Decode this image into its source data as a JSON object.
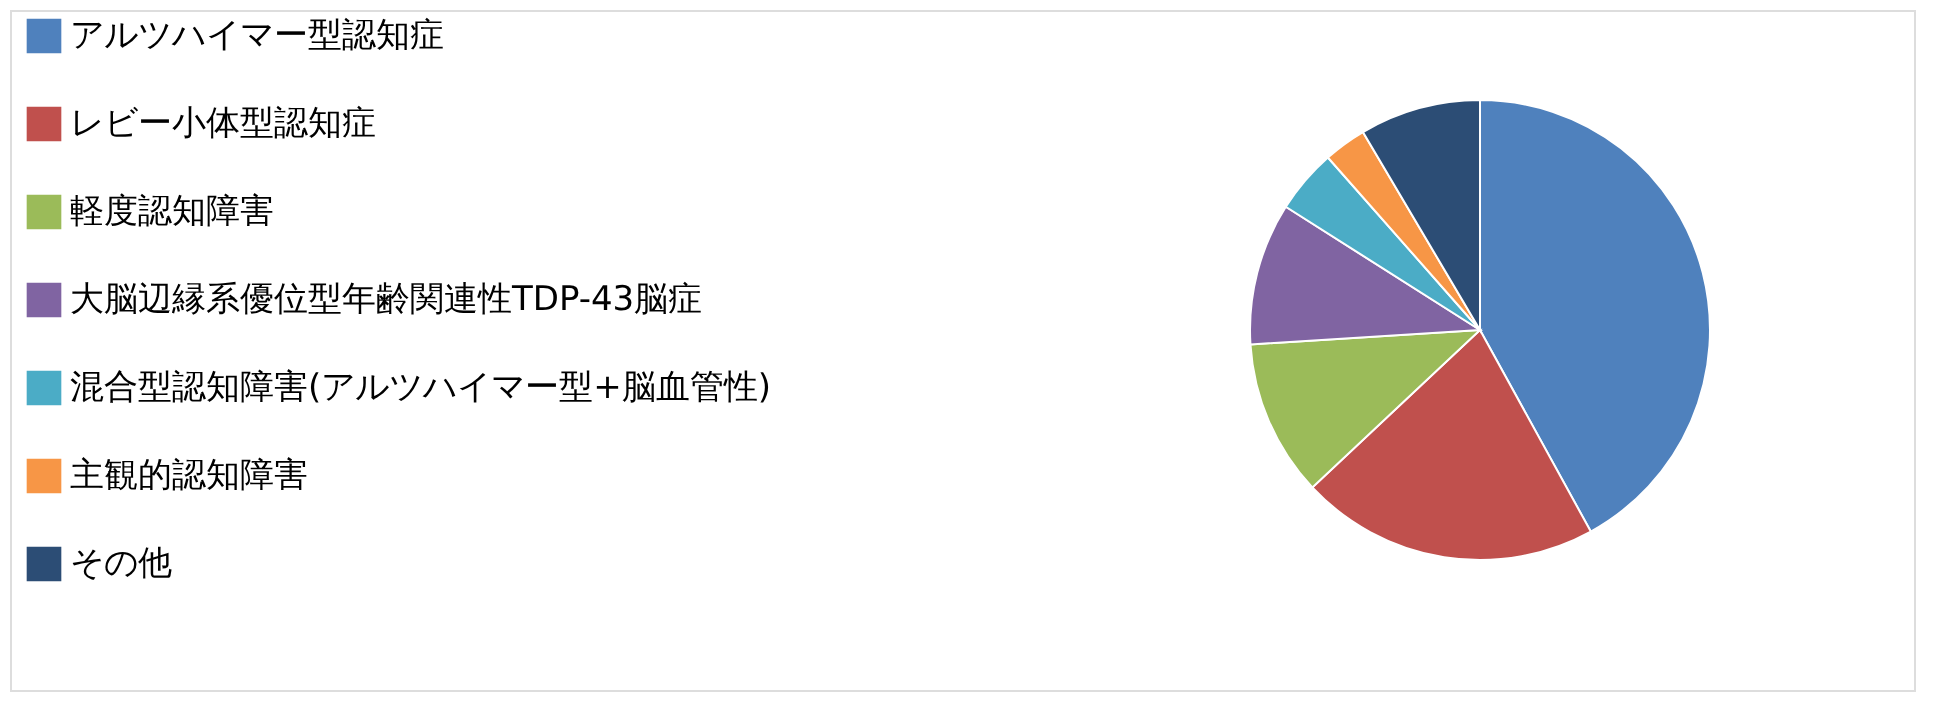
{
  "chart_data": {
    "type": "pie",
    "categories": [
      "アルツハイマー型認知症",
      "レビー小体型認知症",
      "軽度認知障害",
      "大脳辺縁系優位型年齢関連性TDP-43脳症",
      "混合型認知障害(アルツハイマー型+脳血管性)",
      "主観的認知障害",
      "その他"
    ],
    "values": [
      42,
      21,
      11,
      10,
      4.5,
      3,
      8.5
    ],
    "colors": [
      "#4f81bd",
      "#c0504d",
      "#9bbb59",
      "#8064a2",
      "#4bacc6",
      "#f79646",
      "#2c4d75"
    ],
    "legend": "left"
  }
}
